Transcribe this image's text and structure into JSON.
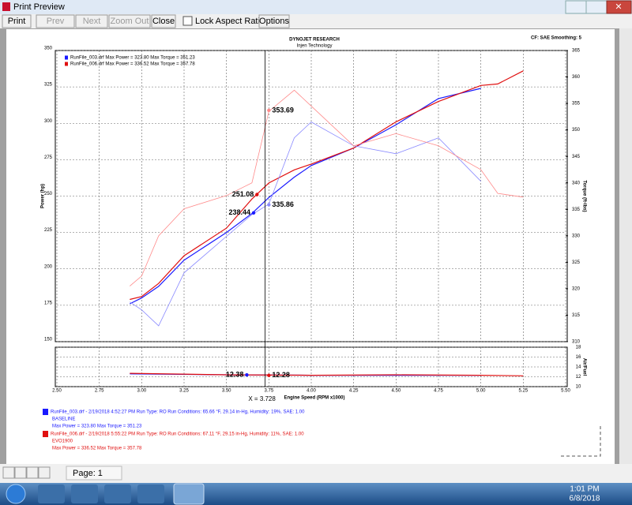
{
  "window": {
    "title": "Print Preview"
  },
  "toolbar": {
    "buttons": [
      "Print",
      "Prev",
      "Next",
      "Zoom Out",
      "Close"
    ],
    "checkbox": "Lock Aspect Ratio",
    "options": "Options"
  },
  "report": {
    "company": "DYNOJET RESEARCH",
    "customer": "Injen Technology",
    "settings": "CF: SAE  Smoothing: 5"
  },
  "chart_data": [
    {
      "type": "line",
      "ylabel": "Power (hp)",
      "y2label": "Torque (ft-lbs)",
      "xlim": [
        2.5,
        5.5
      ],
      "ylim": [
        150,
        350
      ],
      "yticks": [
        150,
        175,
        200,
        225,
        250,
        275,
        300,
        325,
        350
      ],
      "y2lim": [
        310,
        365
      ],
      "y2ticks": [
        310,
        315,
        320,
        325,
        330,
        335,
        340,
        345,
        350,
        355,
        360,
        365
      ],
      "grid": true,
      "x": [
        2.93,
        3.0,
        3.1,
        3.25,
        3.5,
        3.65,
        3.75,
        3.9,
        4.0,
        4.25,
        4.5,
        4.75,
        5.0,
        5.1,
        5.25
      ],
      "series": [
        {
          "name": "RunFile_003.drf Max Power = 323.80    Max Torque = 351.23",
          "color": "#1a1aff",
          "values": [
            176,
            180,
            188,
            206,
            225,
            238,
            249,
            263,
            271,
            283,
            299,
            317,
            324,
            null,
            null
          ]
        },
        {
          "name": "RunFile_006.drf Max Power = 336.52    Max Torque = 357.78",
          "color": "#e01010",
          "values": [
            179,
            181,
            190,
            209,
            228,
            248,
            259,
            268,
            272,
            283,
            301,
            315,
            326,
            327,
            336
          ]
        },
        {
          "color": "#8a8aff",
          "axis": "y2",
          "values": [
            317.5,
            316,
            313,
            323,
            329.9,
            334,
            336,
            348.5,
            351.5,
            347,
            345.5,
            348.5,
            340.3,
            null,
            null
          ]
        },
        {
          "color": "#ff8a8a",
          "axis": "y2",
          "values": [
            320.5,
            322.4,
            330,
            335.1,
            337.6,
            340,
            353.5,
            357.5,
            354.5,
            347,
            349.3,
            347,
            342.5,
            338,
            337.3
          ]
        }
      ],
      "markers": [
        {
          "x": 3.75,
          "y": 353.69,
          "axis": "y2",
          "color": "#ff8a8a"
        },
        {
          "x": 3.68,
          "y": 251.08,
          "color": "#e01010"
        },
        {
          "x": 3.66,
          "y": 238.44,
          "color": "#1a1aff"
        },
        {
          "x": 3.75,
          "y": 335.86,
          "axis": "y2",
          "color": "#8a8aff"
        }
      ]
    },
    {
      "type": "line",
      "xlabel": "Engine Speed (RPM x1000)",
      "ylabel": "Air/Fuel",
      "xlim": [
        2.5,
        5.5
      ],
      "xticks": [
        {
          "value": 2.5,
          "label": "2.50"
        },
        {
          "value": 2.75,
          "label": "2.75"
        },
        {
          "value": 3.0,
          "label": "3.00"
        },
        {
          "value": 3.25,
          "label": "3.25"
        },
        {
          "value": 3.5,
          "label": "3.50"
        },
        {
          "value": 3.75,
          "label": "3.75"
        },
        {
          "value": 4.0,
          "label": "4.00"
        },
        {
          "value": 4.25,
          "label": "4.25"
        },
        {
          "value": 4.5,
          "label": "4.50"
        },
        {
          "value": 4.75,
          "label": "4.75"
        },
        {
          "value": 5.0,
          "label": "5.00"
        },
        {
          "value": 5.25,
          "label": "5.25"
        },
        {
          "value": 5.5,
          "label": "5.50"
        }
      ],
      "ylim": [
        10,
        18
      ],
      "yticks": [
        10,
        12,
        14,
        16,
        18
      ],
      "grid": true,
      "x": [
        2.93,
        3.5,
        4.0,
        4.5,
        5.0,
        5.25
      ],
      "series": [
        {
          "color": "#1a1aff",
          "values": [
            12.6,
            12.4,
            12.3,
            12.3,
            12.3,
            null
          ]
        },
        {
          "color": "#e01010",
          "values": [
            12.7,
            12.4,
            12.3,
            12.4,
            12.3,
            12.2
          ]
        }
      ],
      "markers": [
        {
          "x": 3.62,
          "y": 12.38,
          "color": "#1a1aff"
        },
        {
          "x": 3.75,
          "y": 12.28,
          "color": "#e01010"
        }
      ],
      "cursor_label": "X = ",
      "cursor": 3.728
    }
  ],
  "runs": [
    {
      "line": "RunFile_003.drf - 2/19/2018 4:52:27 PM  Run Type: RO  Run Conditions: 65.66 °F, 29.14 in-Hg,  Humidity:  19%, SAE: 1.00",
      "name": "BASELINE",
      "max": "Max Power = 323.80  Max Torque = 351.23",
      "color": "#1a1aff"
    },
    {
      "line": "RunFile_006.drf - 2/19/2018 5:55:22 PM  Run Type: RO  Run Conditions: 67.11 °F, 29.15 in-Hg,  Humidity:  11%, SAE: 1.00",
      "name": "EVO1900",
      "max": "Max Power = 336.52  Max Torque = 357.78",
      "color": "#e01010"
    }
  ],
  "navigation": {
    "page": "Page: 1"
  },
  "taskbar": {
    "time": "1:01 PM",
    "date": "6/8/2018"
  }
}
